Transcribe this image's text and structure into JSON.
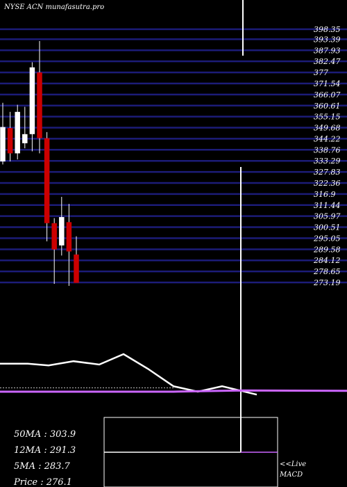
{
  "header": {
    "title": "NYSE ACN munafasutra.pro"
  },
  "colors": {
    "background": "#000000",
    "grid_line": "#1c1c78",
    "up_candle": "#ffffff",
    "down_candle": "#cc0000",
    "wick": "#ffffff",
    "ma_line": "#ffffff",
    "signal_line": "#cc66ff",
    "text": "#ffffff"
  },
  "chart_data": [
    {
      "type": "candlestick",
      "title": "NYSE ACN munafasutra.pro",
      "y_ticks": [
        398.35,
        393.39,
        387.93,
        382.47,
        377,
        371.54,
        366.07,
        360.61,
        355.15,
        349.68,
        344.22,
        338.76,
        333.29,
        327.83,
        322.36,
        316.9,
        311.44,
        305.97,
        300.51,
        295.05,
        289.58,
        284.12,
        278.65,
        273.19
      ],
      "y_tick_labels": [
        "398.35",
        "393.39",
        "387.93",
        "382.47",
        "377",
        "371.54",
        "366.07",
        "360.61",
        "355.15",
        "349.68",
        "344.22",
        "338.76",
        "333.29",
        "327.83",
        "322.36",
        "316.9",
        "311.44",
        "305.97",
        "300.51",
        "295.05",
        "289.58",
        "284.12",
        "278.65",
        "273.19"
      ],
      "ylim": [
        272.5,
        398.35
      ],
      "candles": [
        {
          "open": 333.0,
          "close": 350.0,
          "high": 362.0,
          "low": 331.5,
          "color": "up"
        },
        {
          "open": 349.5,
          "close": 337.0,
          "high": 357.5,
          "low": 333.0,
          "color": "down"
        },
        {
          "open": 337.0,
          "close": 357.5,
          "high": 361.0,
          "low": 334.0,
          "color": "up"
        },
        {
          "open": 342.0,
          "close": 346.5,
          "high": 360.0,
          "low": 339.5,
          "color": "up"
        },
        {
          "open": 346.5,
          "close": 379.5,
          "high": 382.0,
          "low": 338.0,
          "color": "up"
        },
        {
          "open": 377.0,
          "close": 344.5,
          "high": 392.5,
          "low": 337.0,
          "color": "down"
        },
        {
          "open": 344.5,
          "close": 302.5,
          "high": 347.5,
          "low": 293.5,
          "color": "down"
        },
        {
          "open": 302.5,
          "close": 289.5,
          "high": 305.0,
          "low": 272.5,
          "color": "down"
        },
        {
          "open": 291.5,
          "close": 305.5,
          "high": 315.5,
          "low": 286.5,
          "color": "up"
        },
        {
          "open": 303.0,
          "close": 288.5,
          "high": 312.0,
          "low": 271.5,
          "color": "down"
        },
        {
          "open": 287.0,
          "close": 273.0,
          "high": 296.0,
          "low": 273.0,
          "color": "down"
        }
      ]
    },
    {
      "type": "line",
      "series": [
        {
          "values": [
            0.62,
            0.62,
            0.58,
            0.68,
            0.6,
            0.85,
            0.5,
            0.08,
            -0.05,
            0.08,
            -0.12
          ]
        },
        {
          "values": [
            0.04,
            0.04,
            0.04,
            0.04,
            0.04,
            0.04,
            0.04,
            0.04,
            0.04,
            0.04,
            0.04
          ]
        }
      ]
    }
  ],
  "stats": {
    "ma50": "50MA : 303.9",
    "ma12": "12MA : 291.3",
    "ma5": "5MA : 283.7",
    "price": "Price   : 276.1"
  },
  "macd": {
    "live_label": "<<Live",
    "macd_label": "MACD"
  }
}
